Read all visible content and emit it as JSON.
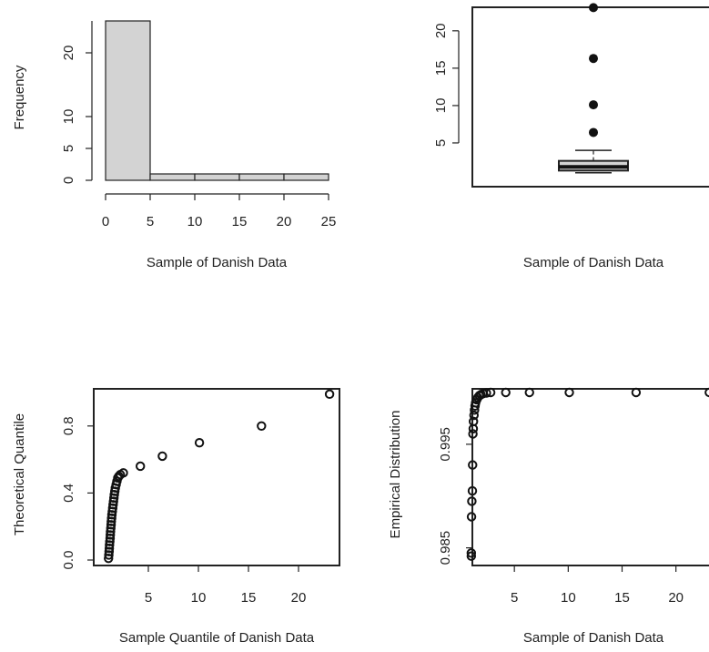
{
  "chart_data": [
    {
      "type": "bar",
      "xlabel": "Sample of Danish Data",
      "ylabel": "Frequency",
      "bin_edges": [
        0,
        5,
        10,
        15,
        20,
        25
      ],
      "values": [
        25,
        1,
        1,
        1,
        1
      ],
      "xlim": [
        0,
        25
      ],
      "ylim": [
        0,
        25
      ],
      "xticks": [
        0,
        5,
        10,
        15,
        20,
        25
      ],
      "yticks": [
        0,
        5,
        10,
        20
      ],
      "bar_color": "#d3d3d3"
    },
    {
      "type": "boxplot",
      "xlabel": "Sample of Danish Data",
      "ylabel": "",
      "box": {
        "q1": 1.3,
        "median": 1.8,
        "q3": 2.6,
        "whisker_low": 1.0,
        "whisker_high": 4.0
      },
      "outliers": [
        6.4,
        10.1,
        16.3,
        23.1
      ],
      "ylim": [
        0,
        24
      ],
      "yticks": [
        5,
        10,
        15,
        20
      ]
    },
    {
      "type": "scatter",
      "xlabel": "Sample Quantile of Danish Data",
      "ylabel": "Theoretical Quantile",
      "x": [
        1.02,
        1.05,
        1.08,
        1.1,
        1.12,
        1.15,
        1.18,
        1.2,
        1.22,
        1.25,
        1.28,
        1.3,
        1.33,
        1.36,
        1.4,
        1.44,
        1.48,
        1.52,
        1.56,
        1.6,
        1.65,
        1.7,
        1.78,
        1.86,
        1.95,
        2.05,
        2.2,
        2.5,
        4.2,
        6.4,
        10.1,
        16.3,
        23.1
      ],
      "y": [
        0.01,
        0.03,
        0.05,
        0.07,
        0.09,
        0.11,
        0.13,
        0.15,
        0.17,
        0.19,
        0.21,
        0.23,
        0.25,
        0.27,
        0.29,
        0.31,
        0.33,
        0.35,
        0.37,
        0.39,
        0.41,
        0.43,
        0.45,
        0.47,
        0.49,
        0.5,
        0.51,
        0.52,
        0.56,
        0.62,
        0.7,
        0.8,
        0.99
      ],
      "xlim": [
        0,
        24
      ],
      "ylim": [
        0,
        1
      ],
      "xticks": [
        5,
        10,
        15,
        20
      ],
      "yticks": [
        "0.0",
        "0.4",
        "0.8"
      ]
    },
    {
      "type": "scatter",
      "xlabel": "Sample of Danish Data",
      "ylabel": "Empirical Distribution",
      "x": [
        1.0,
        1.0,
        1.02,
        1.05,
        1.1,
        1.12,
        1.15,
        1.18,
        1.2,
        1.25,
        1.3,
        1.35,
        1.4,
        1.5,
        1.6,
        1.75,
        1.9,
        2.1,
        2.4,
        2.8,
        4.2,
        6.4,
        10.1,
        16.3,
        23.1
      ],
      "y": [
        0.9842,
        0.9845,
        0.988,
        0.9895,
        0.9905,
        0.993,
        0.996,
        0.9965,
        0.9972,
        0.9978,
        0.9983,
        0.9987,
        0.999,
        0.9993,
        0.9995,
        0.9997,
        0.9998,
        0.9999,
        0.99995,
        1.0,
        1.0,
        1.0,
        1.0,
        1.0,
        1.0
      ],
      "xlim": [
        0,
        24
      ],
      "ylim": [
        0.984,
        1.0
      ],
      "xticks": [
        5,
        10,
        15,
        20
      ],
      "yticks": [
        "0.985",
        "0.995"
      ]
    }
  ]
}
